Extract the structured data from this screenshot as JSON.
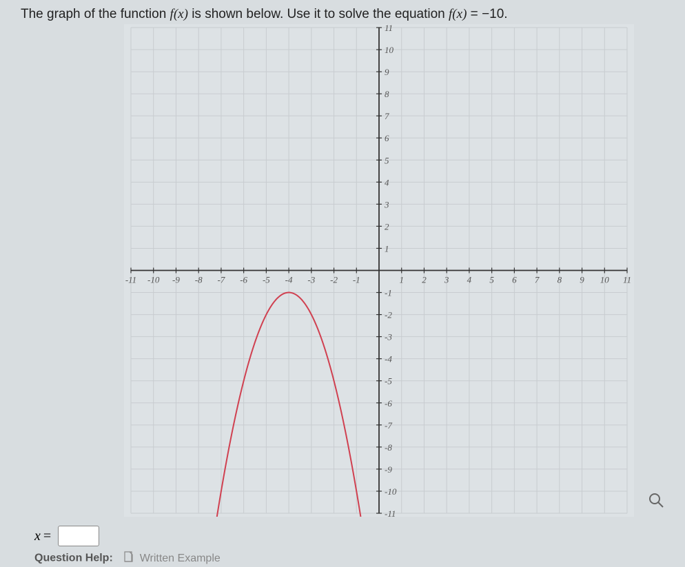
{
  "question": {
    "prefix": "The graph of the function ",
    "fx": "f(x)",
    "middle": " is shown below. Use it to solve the equation ",
    "equation_lhs": "f(x)",
    "equation_eq": " = ",
    "equation_rhs": "−10",
    "suffix": "."
  },
  "graph": {
    "type": "parabola",
    "x_range": [
      -11,
      11
    ],
    "y_range": [
      -11,
      11
    ],
    "x_ticks": [
      -11,
      -10,
      -9,
      -8,
      -7,
      -6,
      -5,
      -4,
      -3,
      -2,
      -1,
      1,
      2,
      3,
      4,
      5,
      6,
      7,
      8,
      9,
      10,
      11
    ],
    "y_ticks": [
      -11,
      -10,
      -9,
      -8,
      -7,
      -6,
      -5,
      -4,
      -3,
      -2,
      -1,
      1,
      2,
      3,
      4,
      5,
      6,
      7,
      8,
      9,
      10,
      11
    ],
    "grid_color": "#b0b4b8",
    "grid_color_light": "#c8ccd0",
    "axis_color": "#333333",
    "tick_label_color": "#555555",
    "tick_label_fontsize": 13,
    "background_color": "#dde2e5",
    "curve_color": "#d04050",
    "curve_width": 2,
    "vertex": [
      -4,
      -1
    ],
    "curve_points": [
      [
        -7,
        -10
      ],
      [
        -6.5,
        -7.25
      ],
      [
        -6,
        -5
      ],
      [
        -5.5,
        -3.25
      ],
      [
        -5,
        -2
      ],
      [
        -4.5,
        -1.25
      ],
      [
        -4,
        -1
      ],
      [
        -3.5,
        -1.25
      ],
      [
        -3,
        -2
      ],
      [
        -2.5,
        -3.25
      ],
      [
        -2,
        -5
      ],
      [
        -1.5,
        -7.25
      ],
      [
        -1,
        -10
      ]
    ]
  },
  "answer": {
    "variable": "x",
    "eq": "=",
    "value": ""
  },
  "help": {
    "label": "Question Help:",
    "link": "Written Example"
  },
  "magnifier_icon": "magnify-icon"
}
